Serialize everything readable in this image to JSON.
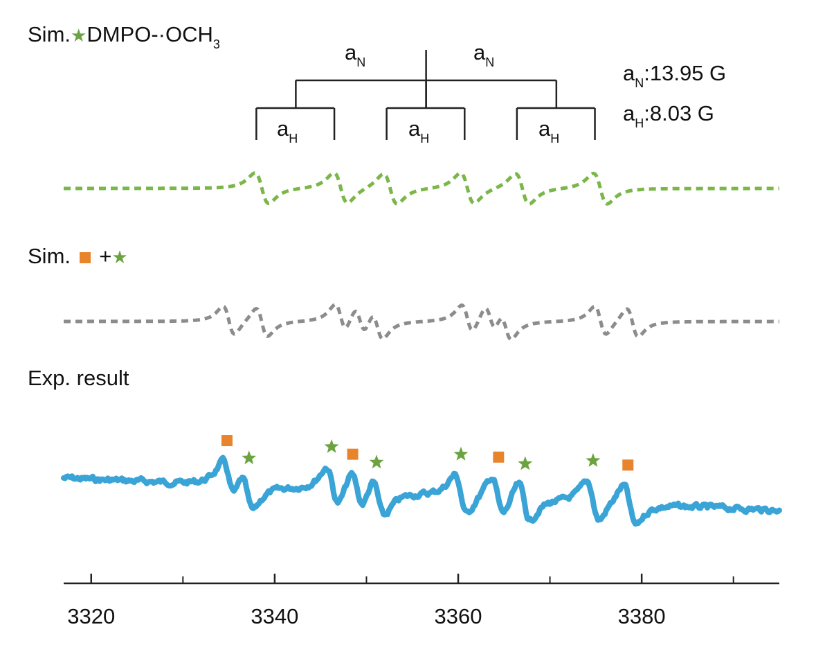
{
  "labels": {
    "sim_prefix": "Sim.",
    "sim_species": "DMPO-·OCH",
    "sim_species_sub": "3",
    "sim_mix_prefix": "Sim.",
    "sim_mix_plus": "+",
    "exp_label": "Exp. result",
    "aN_text": "a",
    "aN_sub": "N",
    "aH_text": "a",
    "aH_sub": "H",
    "aN_value": ":13.95 G",
    "aH_value": ":8.03 G"
  },
  "colors": {
    "star": "#6aa33f",
    "square": "#e8842c",
    "sim_dmpo_och3": "#7ab648",
    "sim_mix": "#8c8c8c",
    "experimental": "#3aa4d6",
    "axis": "#222222"
  },
  "icons": {
    "star": "star-icon",
    "square": "square-icon"
  },
  "chart_data": {
    "type": "line",
    "xlabel": "",
    "ylabel": "",
    "xlim": [
      3317,
      3395
    ],
    "x_ticks": [
      3320,
      3340,
      3360,
      3380
    ],
    "x_minor_ticks": [
      3330,
      3350,
      3370,
      3390
    ],
    "hyperfine": {
      "aN_G": 13.95,
      "aH_G": 8.03
    },
    "stick_diagram": {
      "center": 3356.5,
      "aN_positions": [
        3342.3,
        3356.5,
        3370.7
      ],
      "aH_pairs": [
        [
          3338.0,
          3346.5
        ],
        [
          3352.2,
          3360.7
        ],
        [
          3366.4,
          3374.9
        ]
      ]
    },
    "series": [
      {
        "name": "Sim. DMPO-·OCH3",
        "style": "dashed",
        "lines": [
          3338.6,
          3347.2,
          3352.6,
          3361.0,
          3367.0,
          3375.5
        ],
        "width": 1.3
      },
      {
        "name": "Sim. mix",
        "style": "dashed",
        "lines": [
          3335.0,
          3338.6,
          3347.2,
          3349.3,
          3351.2,
          3361.0,
          3363.5,
          3365.2,
          3375.5,
          3379.0
        ],
        "width": 1.1
      },
      {
        "name": "Exp. result",
        "style": "solid",
        "lines": [
          3335.0,
          3337.0,
          3346.3,
          3349.0,
          3351.3,
          3360.3,
          3364.3,
          3367.2,
          3374.7,
          3378.7
        ],
        "width": 1.2
      }
    ],
    "markers": [
      {
        "type": "square",
        "x": 3334.8
      },
      {
        "type": "star",
        "x": 3337.2
      },
      {
        "type": "star",
        "x": 3346.2
      },
      {
        "type": "square",
        "x": 3348.5
      },
      {
        "type": "star",
        "x": 3351.1
      },
      {
        "type": "star",
        "x": 3360.3
      },
      {
        "type": "square",
        "x": 3364.4
      },
      {
        "type": "star",
        "x": 3367.3
      },
      {
        "type": "star",
        "x": 3374.7
      },
      {
        "type": "square",
        "x": 3378.5
      }
    ]
  }
}
